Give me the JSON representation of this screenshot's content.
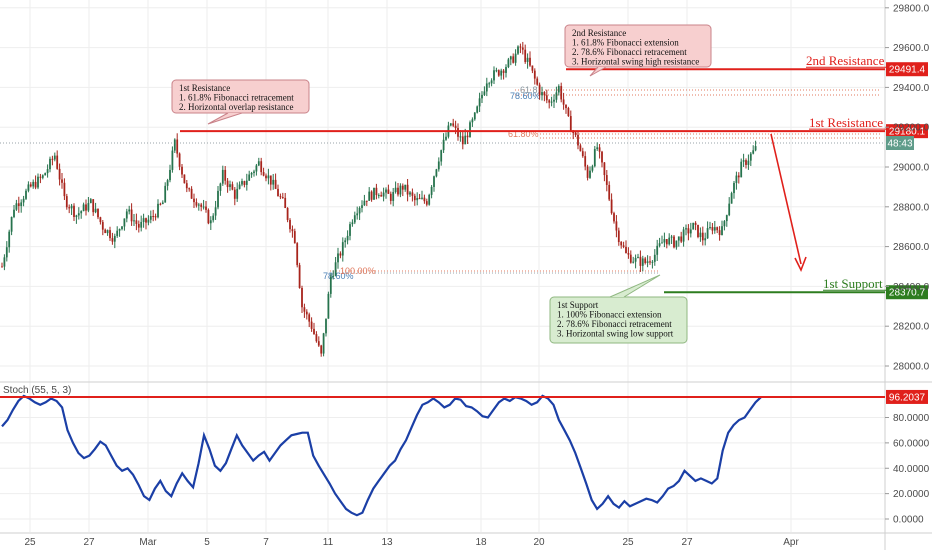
{
  "chart_data": [
    {
      "type": "candlestick",
      "title": "",
      "ylim": [
        27900,
        29900
      ],
      "y_ticks": [
        "29800.0",
        "29600.0",
        "29400.0",
        "29200.0",
        "29000.0",
        "28800.0",
        "28600.0",
        "28400.0",
        "28200.0",
        "28000.0"
      ],
      "x_ticks": [
        "25",
        "27",
        "Mar",
        "5",
        "7",
        "11",
        "13",
        "18",
        "20",
        "25",
        "27",
        "Apr"
      ],
      "grid": true,
      "series_close_path": [
        {
          "i": 0,
          "y": 28500
        },
        {
          "i": 5,
          "y": 28800
        },
        {
          "i": 12,
          "y": 28900
        },
        {
          "i": 17,
          "y": 28950
        },
        {
          "i": 22,
          "y": 29060
        },
        {
          "i": 26,
          "y": 28840
        },
        {
          "i": 31,
          "y": 28760
        },
        {
          "i": 37,
          "y": 28820
        },
        {
          "i": 42,
          "y": 28700
        },
        {
          "i": 47,
          "y": 28640
        },
        {
          "i": 52,
          "y": 28780
        },
        {
          "i": 57,
          "y": 28700
        },
        {
          "i": 62,
          "y": 28740
        },
        {
          "i": 67,
          "y": 28820
        },
        {
          "i": 72,
          "y": 29120
        },
        {
          "i": 77,
          "y": 28880
        },
        {
          "i": 82,
          "y": 28820
        },
        {
          "i": 87,
          "y": 28720
        },
        {
          "i": 92,
          "y": 28960
        },
        {
          "i": 97,
          "y": 28860
        },
        {
          "i": 102,
          "y": 28940
        },
        {
          "i": 107,
          "y": 29020
        },
        {
          "i": 112,
          "y": 28930
        },
        {
          "i": 117,
          "y": 28820
        },
        {
          "i": 122,
          "y": 28640
        },
        {
          "i": 125,
          "y": 28300
        },
        {
          "i": 129,
          "y": 28200
        },
        {
          "i": 133,
          "y": 28050
        },
        {
          "i": 137,
          "y": 28450
        },
        {
          "i": 142,
          "y": 28600
        },
        {
          "i": 147,
          "y": 28780
        },
        {
          "i": 152,
          "y": 28850
        },
        {
          "i": 157,
          "y": 28880
        },
        {
          "i": 162,
          "y": 28850
        },
        {
          "i": 167,
          "y": 28900
        },
        {
          "i": 172,
          "y": 28830
        },
        {
          "i": 177,
          "y": 28830
        },
        {
          "i": 182,
          "y": 29050
        },
        {
          "i": 187,
          "y": 29220
        },
        {
          "i": 192,
          "y": 29120
        },
        {
          "i": 197,
          "y": 29250
        },
        {
          "i": 202,
          "y": 29440
        },
        {
          "i": 207,
          "y": 29480
        },
        {
          "i": 212,
          "y": 29530
        },
        {
          "i": 216,
          "y": 29600
        },
        {
          "i": 220,
          "y": 29500
        },
        {
          "i": 224,
          "y": 29380
        },
        {
          "i": 228,
          "y": 29320
        },
        {
          "i": 232,
          "y": 29400
        },
        {
          "i": 236,
          "y": 29230
        },
        {
          "i": 240,
          "y": 29120
        },
        {
          "i": 244,
          "y": 28960
        },
        {
          "i": 248,
          "y": 29100
        },
        {
          "i": 252,
          "y": 28900
        },
        {
          "i": 256,
          "y": 28680
        },
        {
          "i": 260,
          "y": 28560
        },
        {
          "i": 264,
          "y": 28530
        },
        {
          "i": 268,
          "y": 28520
        },
        {
          "i": 272,
          "y": 28560
        },
        {
          "i": 276,
          "y": 28640
        },
        {
          "i": 280,
          "y": 28620
        },
        {
          "i": 284,
          "y": 28660
        },
        {
          "i": 288,
          "y": 28700
        },
        {
          "i": 292,
          "y": 28640
        },
        {
          "i": 296,
          "y": 28700
        },
        {
          "i": 300,
          "y": 28680
        },
        {
          "i": 304,
          "y": 28880
        },
        {
          "i": 308,
          "y": 29000
        },
        {
          "i": 312,
          "y": 29060
        },
        {
          "i": 314,
          "y": 29090
        }
      ],
      "levels": [
        {
          "name": "2nd Resistance",
          "value": "29491.4",
          "y": 29491.4,
          "color": "#e0201b"
        },
        {
          "name": "1st Resistance",
          "value": "29180.1",
          "y": 29180.1,
          "color": "#e0201b"
        },
        {
          "name": "1st Support",
          "value": "28370.7",
          "y": 28370.7,
          "color": "#2d7d1f"
        }
      ],
      "current_price_tag": "48:43",
      "fib_labels": [
        "61.80%",
        "61.8",
        "78.60%",
        "78.60%",
        "100.00%"
      ]
    },
    {
      "type": "line",
      "title": "",
      "indicator_label": "Stoch (55, 5, 3)",
      "ylim": [
        -5,
        105
      ],
      "y_ticks": [
        "80.0000",
        "60.0000",
        "40.0000",
        "20.0000",
        "0.0000"
      ],
      "level": {
        "value": "96.2037",
        "y": 96.2037,
        "color": "#e0201b"
      },
      "series": [
        {
          "name": "",
          "color": "#1b3fa6",
          "points": [
            [
              0,
              73
            ],
            [
              2,
              78
            ],
            [
              4,
              86
            ],
            [
              6,
              93
            ],
            [
              8,
              97
            ],
            [
              10,
              95
            ],
            [
              12,
              92
            ],
            [
              14,
              90
            ],
            [
              16,
              92
            ],
            [
              18,
              95
            ],
            [
              20,
              93
            ],
            [
              22,
              88
            ],
            [
              24,
              70
            ],
            [
              26,
              60
            ],
            [
              28,
              52
            ],
            [
              30,
              48
            ],
            [
              32,
              50
            ],
            [
              34,
              55
            ],
            [
              36,
              61
            ],
            [
              38,
              58
            ],
            [
              40,
              50
            ],
            [
              42,
              42
            ],
            [
              44,
              38
            ],
            [
              46,
              40
            ],
            [
              48,
              35
            ],
            [
              50,
              27
            ],
            [
              52,
              18
            ],
            [
              54,
              15
            ],
            [
              56,
              24
            ],
            [
              58,
              30
            ],
            [
              60,
              22
            ],
            [
              62,
              18
            ],
            [
              64,
              28
            ],
            [
              66,
              36
            ],
            [
              68,
              30
            ],
            [
              70,
              25
            ],
            [
              72,
              44
            ],
            [
              74,
              66
            ],
            [
              76,
              55
            ],
            [
              78,
              42
            ],
            [
              80,
              38
            ],
            [
              82,
              44
            ],
            [
              84,
              55
            ],
            [
              86,
              66
            ],
            [
              88,
              58
            ],
            [
              90,
              52
            ],
            [
              92,
              46
            ],
            [
              94,
              50
            ],
            [
              96,
              53
            ],
            [
              98,
              46
            ],
            [
              100,
              52
            ],
            [
              102,
              58
            ],
            [
              104,
              62
            ],
            [
              106,
              66
            ],
            [
              108,
              67
            ],
            [
              110,
              68
            ],
            [
              112,
              68
            ],
            [
              114,
              50
            ],
            [
              116,
              42
            ],
            [
              118,
              35
            ],
            [
              120,
              28
            ],
            [
              122,
              20
            ],
            [
              124,
              14
            ],
            [
              126,
              8
            ],
            [
              128,
              5
            ],
            [
              130,
              3
            ],
            [
              132,
              5
            ],
            [
              134,
              15
            ],
            [
              136,
              24
            ],
            [
              138,
              30
            ],
            [
              140,
              36
            ],
            [
              142,
              42
            ],
            [
              144,
              46
            ],
            [
              146,
              55
            ],
            [
              148,
              62
            ],
            [
              150,
              72
            ],
            [
              152,
              82
            ],
            [
              154,
              90
            ],
            [
              156,
              92
            ],
            [
              158,
              95
            ],
            [
              160,
              92
            ],
            [
              162,
              88
            ],
            [
              164,
              90
            ],
            [
              166,
              95
            ],
            [
              168,
              94
            ],
            [
              170,
              89
            ],
            [
              172,
              88
            ],
            [
              174,
              85
            ],
            [
              176,
              81
            ],
            [
              178,
              80
            ],
            [
              180,
              86
            ],
            [
              182,
              92
            ],
            [
              184,
              95
            ],
            [
              186,
              93
            ],
            [
              188,
              96
            ],
            [
              190,
              95
            ],
            [
              192,
              93
            ],
            [
              194,
              90
            ],
            [
              196,
              92
            ],
            [
              198,
              97
            ],
            [
              200,
              95
            ],
            [
              202,
              90
            ],
            [
              204,
              78
            ],
            [
              206,
              70
            ],
            [
              208,
              62
            ],
            [
              210,
              52
            ],
            [
              212,
              40
            ],
            [
              214,
              28
            ],
            [
              216,
              15
            ],
            [
              218,
              8
            ],
            [
              220,
              12
            ],
            [
              222,
              18
            ],
            [
              224,
              12
            ],
            [
              226,
              9
            ],
            [
              228,
              14
            ],
            [
              230,
              10
            ],
            [
              232,
              12
            ],
            [
              234,
              14
            ],
            [
              236,
              16
            ],
            [
              238,
              15
            ],
            [
              240,
              13
            ],
            [
              242,
              18
            ],
            [
              244,
              24
            ],
            [
              246,
              26
            ],
            [
              248,
              30
            ],
            [
              250,
              38
            ],
            [
              252,
              34
            ],
            [
              254,
              30
            ],
            [
              256,
              32
            ],
            [
              258,
              30
            ],
            [
              260,
              28
            ],
            [
              262,
              32
            ],
            [
              264,
              54
            ],
            [
              266,
              68
            ],
            [
              268,
              74
            ],
            [
              270,
              78
            ],
            [
              272,
              80
            ],
            [
              274,
              86
            ],
            [
              276,
              92
            ],
            [
              278,
              96
            ]
          ]
        }
      ]
    }
  ],
  "annotations": {
    "res2_box": [
      "2nd Resistance",
      "1. 61.8% Fibonacci extension",
      "2. 78.6% Fibonacci retracement",
      "3. Horizontal swing high resistance"
    ],
    "res1_box": [
      "1st Resistance",
      "1. 61.8% Fibonacci retracement",
      "2. Horizontal overlap resistance"
    ],
    "sup1_box": [
      "1st Support",
      "1. 100% Fibonacci extension",
      "2. 78.6% Fibonacci retracement",
      "3. Horizontal swing low support"
    ]
  },
  "colors": {
    "bull": "#26734d",
    "bear": "#a8241c",
    "resistance": "#e0201b",
    "support": "#2d7d1f",
    "stoch": "#1b3fa6",
    "grid": "#eeeeee"
  }
}
